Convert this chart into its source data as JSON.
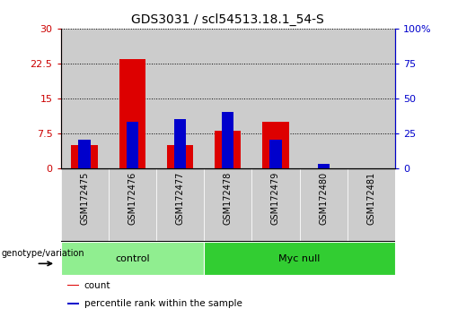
{
  "title": "GDS3031 / scl54513.18.1_54-S",
  "samples": [
    "GSM172475",
    "GSM172476",
    "GSM172477",
    "GSM172478",
    "GSM172479",
    "GSM172480",
    "GSM172481"
  ],
  "red_counts": [
    5.0,
    23.5,
    5.0,
    8.0,
    10.0,
    0.0,
    0.0
  ],
  "blue_percentiles": [
    20.0,
    33.0,
    35.0,
    40.0,
    20.0,
    3.0,
    0.0
  ],
  "red_color": "#dd0000",
  "blue_color": "#0000cc",
  "ylim_left": [
    0,
    30
  ],
  "ylim_right": [
    0,
    100
  ],
  "yticks_left": [
    0,
    7.5,
    15,
    22.5,
    30
  ],
  "yticks_right": [
    0,
    25,
    50,
    75,
    100
  ],
  "ytick_labels_left": [
    "0",
    "7.5",
    "15",
    "22.5",
    "30"
  ],
  "ytick_labels_right": [
    "0",
    "25",
    "50",
    "75",
    "100%"
  ],
  "groups": [
    {
      "label": "control",
      "start": 0,
      "end": 3,
      "color": "#90ee90"
    },
    {
      "label": "Myc null",
      "start": 3,
      "end": 7,
      "color": "#32cd32"
    }
  ],
  "group_header": "genotype/variation",
  "legend_items": [
    {
      "label": "count",
      "color": "#dd0000"
    },
    {
      "label": "percentile rank within the sample",
      "color": "#0000cc"
    }
  ],
  "bar_width": 0.55,
  "blue_bar_width": 0.25,
  "grid_color": "black",
  "bar_bg_color": "#cccccc",
  "tick_color_left": "#cc0000",
  "tick_color_right": "#0000cc",
  "xlabel_bg_color": "#cccccc",
  "plot_bg_color": "#ffffff"
}
